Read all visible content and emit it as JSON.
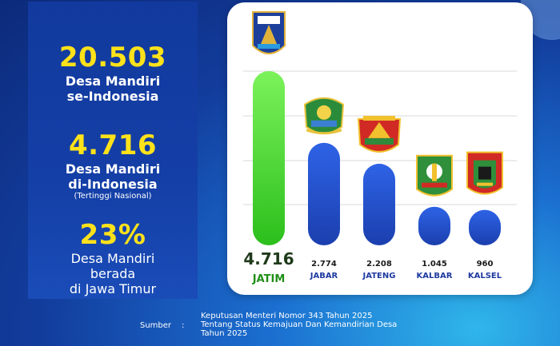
{
  "stats": [
    {
      "value": "20.503",
      "line1": "Desa Mandiri",
      "line2": "se-Indonesia"
    },
    {
      "value": "4.716",
      "line1": "Desa Mandiri",
      "line2": "di-Indonesia",
      "note": "(Tertinggi Nasional)"
    },
    {
      "value": "23%",
      "line1": "Desa Mandiri",
      "line2": "berada",
      "line3": "di Jawa Timur"
    }
  ],
  "chart_data": {
    "type": "bar",
    "categories": [
      "JATIM",
      "JABAR",
      "JATENG",
      "KALBAR",
      "KALSEL"
    ],
    "value_labels": [
      "4.716",
      "2.774",
      "2.208",
      "1.045",
      "960"
    ],
    "values": [
      4716,
      2774,
      2208,
      1045,
      960
    ],
    "ylim": [
      0,
      4716
    ],
    "colors": {
      "highlight": "#3fd62a",
      "bar": "#1f55d8",
      "label_highlight": "#1f8f16",
      "label": "#1e3aa0"
    },
    "grid": true
  },
  "source": {
    "label": "Sumber",
    "separator": ":",
    "lines": [
      "Keputusan Menteri Nomor 343 Tahun 2025",
      "Tentang Status Kemajuan Dan Kemandirian Desa",
      "Tahun 2025"
    ]
  },
  "emblems": [
    "jatim-emblem-icon",
    "jabar-emblem-icon",
    "jateng-emblem-icon",
    "kalbar-emblem-icon",
    "kalsel-emblem-icon"
  ]
}
